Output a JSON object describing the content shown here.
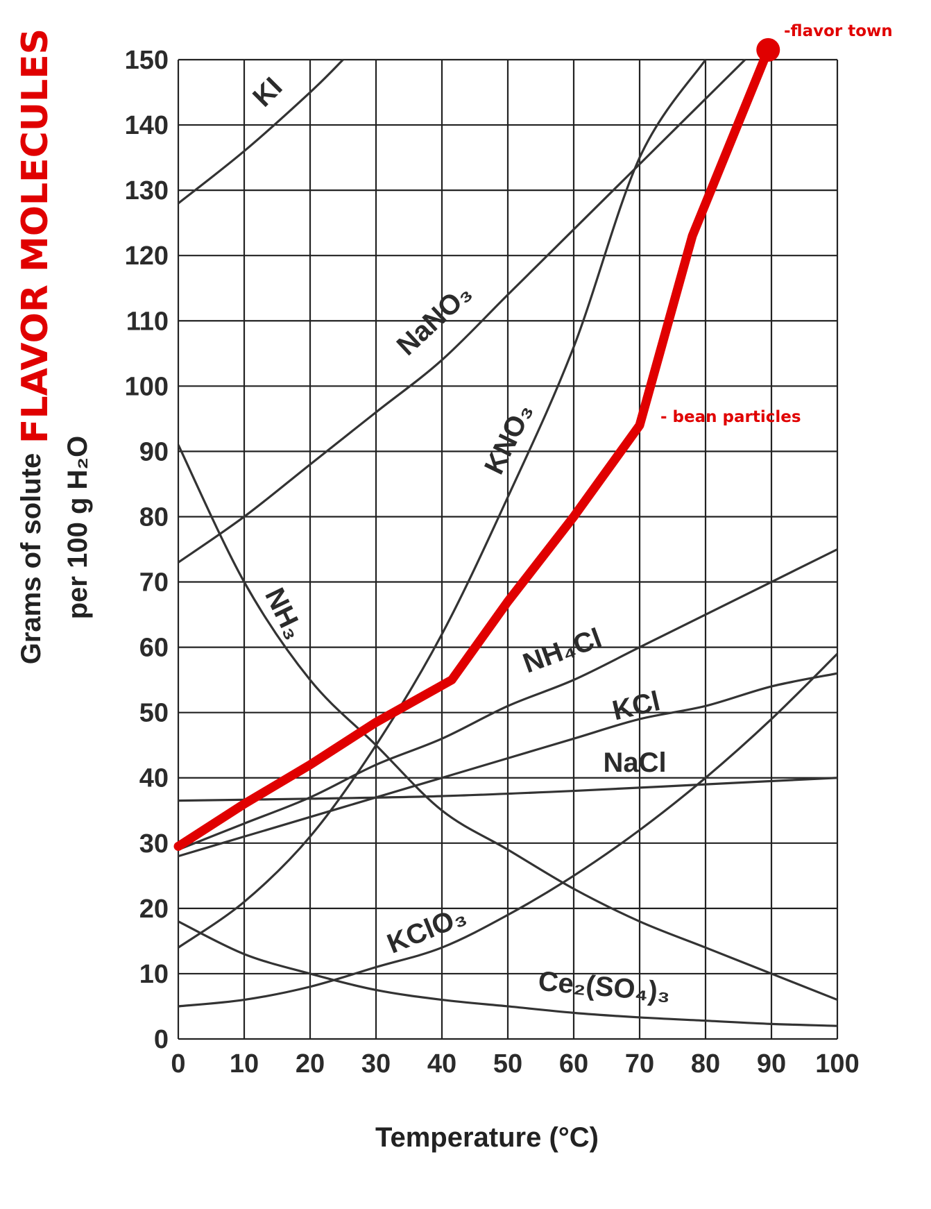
{
  "chart_data": {
    "type": "line",
    "xlabel": "Temperature (°C)",
    "ylabel_line1": "Grams of solute",
    "ylabel_line2": "per 100 g H₂O",
    "overlay_title": "FLAVOR MOLECULES",
    "xlim": [
      0,
      100
    ],
    "ylim": [
      0,
      150
    ],
    "x_ticks": [
      0,
      10,
      20,
      30,
      40,
      50,
      60,
      70,
      80,
      90,
      100
    ],
    "y_ticks": [
      0,
      10,
      20,
      30,
      40,
      50,
      60,
      70,
      80,
      90,
      100,
      110,
      120,
      130,
      140,
      150
    ],
    "grid": true,
    "series": [
      {
        "name": "KI",
        "x": [
          0,
          10,
          20,
          25
        ],
        "y": [
          128,
          136,
          145,
          150
        ]
      },
      {
        "name": "NaNO₃",
        "x": [
          0,
          10,
          20,
          30,
          40,
          50,
          60,
          70,
          80,
          86
        ],
        "y": [
          73,
          80,
          88,
          96,
          104,
          114,
          124,
          134,
          144,
          150
        ]
      },
      {
        "name": "KNO₃",
        "x": [
          0,
          10,
          20,
          30,
          40,
          50,
          60,
          70,
          80
        ],
        "y": [
          14,
          21,
          31,
          45,
          62,
          83,
          106,
          135,
          150
        ]
      },
      {
        "name": "NH₃",
        "x": [
          0,
          10,
          20,
          30,
          40,
          50,
          60,
          70,
          80,
          90,
          100
        ],
        "y": [
          91,
          70,
          55,
          45,
          35,
          29,
          23,
          18,
          14,
          10,
          6
        ]
      },
      {
        "name": "NH₄Cl",
        "x": [
          0,
          10,
          20,
          30,
          40,
          50,
          60,
          70,
          80,
          90,
          100
        ],
        "y": [
          29,
          33,
          37,
          42,
          46,
          51,
          55,
          60,
          65,
          70,
          75
        ]
      },
      {
        "name": "KCl",
        "x": [
          0,
          10,
          20,
          30,
          40,
          50,
          60,
          70,
          80,
          90,
          100
        ],
        "y": [
          28,
          31,
          34,
          37,
          40,
          43,
          46,
          49,
          51,
          54,
          56
        ]
      },
      {
        "name": "NaCl",
        "x": [
          0,
          20,
          40,
          60,
          80,
          100
        ],
        "y": [
          36.5,
          36.8,
          37.2,
          38,
          39,
          40
        ]
      },
      {
        "name": "KClO₃",
        "x": [
          0,
          10,
          20,
          30,
          40,
          50,
          60,
          70,
          80,
          90,
          100
        ],
        "y": [
          5,
          6,
          8,
          11,
          14,
          19,
          25,
          32,
          40,
          49,
          59
        ]
      },
      {
        "name": "Ce₂(SO₄)₃",
        "x": [
          0,
          10,
          20,
          30,
          40,
          50,
          60,
          70,
          80,
          90,
          100
        ],
        "y": [
          18,
          13,
          10,
          7.5,
          6,
          5,
          4,
          3.3,
          2.8,
          2.3,
          2
        ]
      }
    ],
    "overlay_series": {
      "color": "#e00000",
      "x": [
        0,
        10,
        20,
        30,
        41.5,
        50,
        60,
        70,
        78,
        89.5
      ],
      "y": [
        29.5,
        36,
        42,
        48.5,
        55,
        67,
        80,
        94,
        123,
        151.5
      ]
    },
    "annotations": [
      {
        "text": "- bean particles",
        "x": 73.5,
        "y": 95
      },
      {
        "text": "-flavor town",
        "x": 93,
        "y": 155
      }
    ]
  },
  "colors": {
    "grid": "#222222",
    "curve": "#333333",
    "overlay": "#e00000"
  }
}
